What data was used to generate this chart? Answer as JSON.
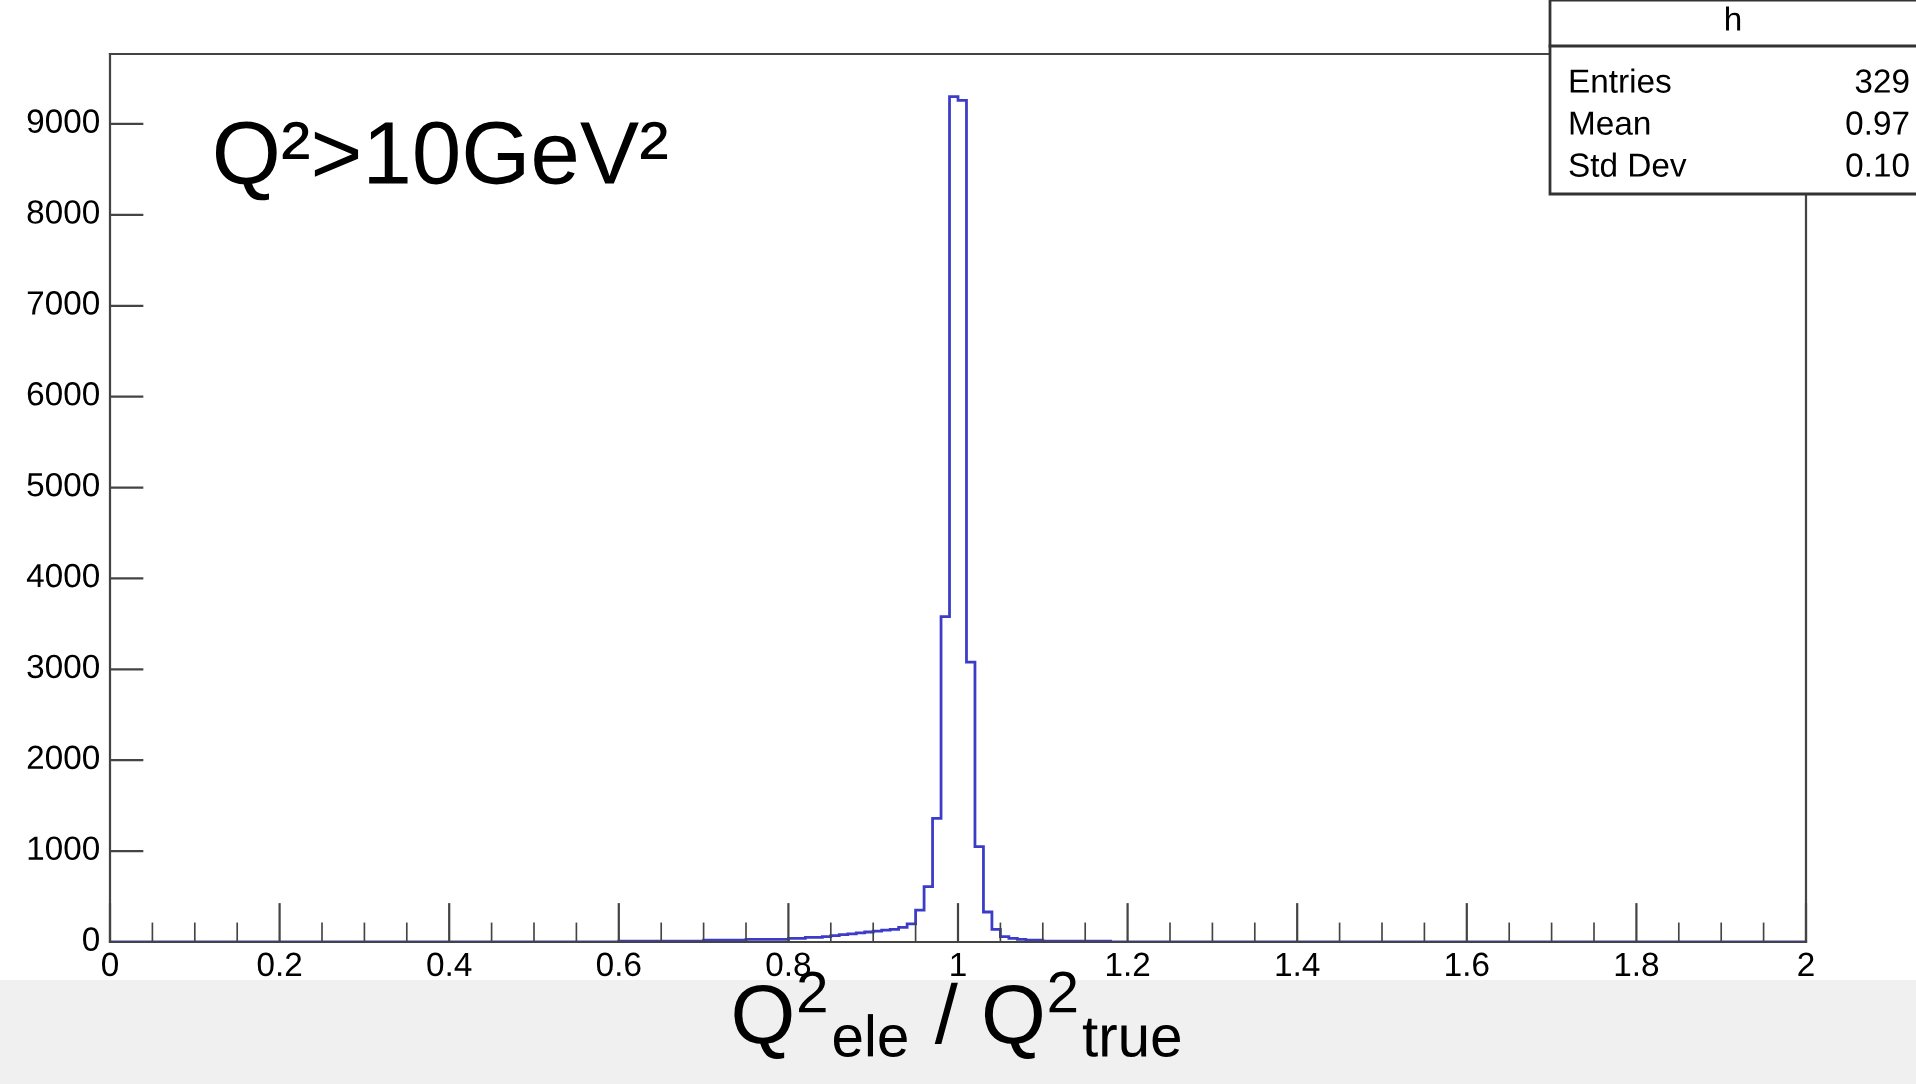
{
  "chart_data": {
    "type": "histogram",
    "xlabel": "Q$^{2}$$_{ele}$ / Q$^{2}$$_{true}$",
    "annotations": [
      "Q²>10GeV²",
      "h",
      "Entries",
      "329",
      "Mean",
      "0.97",
      "Std Dev",
      "0.10"
    ],
    "bins": [
      0.0,
      0.01,
      0.02,
      0.03,
      0.04,
      0.05,
      0.06,
      0.07,
      0.08,
      0.09,
      0.1,
      0.11,
      0.12,
      0.13,
      0.14,
      0.15,
      0.16,
      0.17,
      0.18,
      0.19,
      0.2,
      0.21,
      0.22,
      0.23,
      0.24,
      0.25,
      0.26,
      0.27,
      0.28,
      0.29,
      0.3,
      0.31,
      0.32,
      0.33,
      0.34,
      0.35,
      0.36,
      0.37,
      0.38,
      0.39,
      0.4,
      0.41,
      0.42,
      0.43,
      0.44,
      0.45,
      0.46,
      0.47,
      0.48,
      0.49,
      0.5,
      0.51,
      0.52,
      0.53,
      0.54,
      0.55,
      0.56,
      0.57,
      0.58,
      0.59,
      0.6,
      0.61,
      0.62,
      0.63,
      0.64,
      0.65,
      0.66,
      0.67,
      0.68,
      0.69,
      0.7,
      0.71,
      0.72,
      0.73,
      0.74,
      0.75,
      0.76,
      0.77,
      0.78,
      0.79,
      0.8,
      0.81,
      0.82,
      0.83,
      0.84,
      0.85,
      0.86,
      0.87,
      0.88,
      0.89,
      0.9,
      0.91,
      0.92,
      0.93,
      0.94,
      0.95,
      0.96,
      0.97,
      0.98,
      0.99,
      1.0,
      1.01,
      1.02,
      1.03,
      1.04,
      1.05,
      1.06,
      1.07,
      1.08,
      1.09,
      1.1,
      1.11,
      1.12,
      1.13,
      1.14,
      1.15,
      1.16,
      1.17,
      1.18,
      1.19,
      1.2,
      1.21,
      1.22,
      1.23,
      1.24,
      1.25,
      1.26,
      1.27,
      1.28,
      1.29,
      1.3,
      1.31,
      1.32,
      1.33,
      1.34,
      1.35,
      1.36,
      1.37,
      1.38,
      1.39,
      1.4,
      1.41,
      1.42,
      1.43,
      1.44,
      1.45,
      1.46,
      1.47,
      1.48,
      1.49,
      1.5,
      1.51,
      1.52,
      1.53,
      1.54,
      1.55,
      1.56,
      1.57,
      1.58,
      1.59,
      1.6,
      1.61,
      1.62,
      1.63,
      1.64,
      1.65,
      1.66,
      1.67,
      1.68,
      1.69,
      1.7,
      1.71,
      1.72,
      1.73,
      1.74,
      1.75,
      1.76,
      1.77,
      1.78,
      1.79,
      1.8,
      1.81,
      1.82,
      1.83,
      1.84,
      1.85,
      1.86,
      1.87,
      1.88,
      1.89,
      1.9,
      1.91,
      1.92,
      1.93,
      1.94,
      1.95,
      1.96,
      1.97,
      1.98,
      1.99,
      2.0
    ],
    "values": [
      0,
      0,
      0,
      0,
      0,
      0,
      0,
      0,
      0,
      0,
      0,
      0,
      0,
      0,
      0,
      0,
      0,
      0,
      0,
      0,
      0,
      0,
      0,
      0,
      0,
      0,
      0,
      0,
      0,
      0,
      0,
      0,
      0,
      0,
      0,
      0,
      0,
      0,
      0,
      0,
      0,
      0,
      0,
      0,
      0,
      0,
      0,
      0,
      0,
      0,
      0,
      0,
      0,
      0,
      0,
      0,
      0,
      0,
      0,
      0,
      10,
      10,
      10,
      10,
      10,
      10,
      10,
      10,
      10,
      10,
      20,
      20,
      20,
      20,
      20,
      30,
      30,
      30,
      30,
      30,
      40,
      40,
      50,
      50,
      60,
      70,
      80,
      90,
      100,
      110,
      120,
      130,
      140,
      160,
      200,
      350,
      610,
      1360,
      3580,
      9300,
      9260,
      3080,
      1050,
      330,
      140,
      60,
      40,
      30,
      20,
      20,
      10,
      10,
      10,
      10,
      10,
      10,
      10,
      10,
      0,
      0,
      0,
      0,
      0,
      0,
      0,
      0,
      0,
      0,
      0,
      0,
      0,
      0,
      0,
      0,
      0,
      0,
      0,
      0,
      0,
      0,
      0,
      0,
      0,
      0,
      0,
      0,
      0,
      0,
      0,
      0,
      0,
      0,
      0,
      0,
      0,
      0,
      0,
      0,
      0,
      0,
      0,
      0,
      0,
      0,
      0,
      0,
      0,
      0,
      0,
      0,
      0,
      0,
      0,
      0,
      0,
      0,
      0,
      0,
      0,
      0,
      0,
      0,
      0,
      0,
      0,
      0,
      0,
      0,
      0,
      0,
      0,
      0,
      0,
      0,
      0,
      0,
      0,
      0,
      0,
      0
    ],
    "color": "#3c3cc8",
    "xlim": [
      0,
      2
    ],
    "xticks": [
      0,
      0.2,
      0.4,
      0.6,
      0.8,
      1,
      1.2,
      1.4,
      1.6,
      1.8,
      2
    ],
    "ylim": [
      0,
      9770
    ],
    "yticks": [
      0,
      1000,
      2000,
      3000,
      4000,
      5000,
      6000,
      7000,
      8000,
      9000
    ],
    "grid": false
  }
}
